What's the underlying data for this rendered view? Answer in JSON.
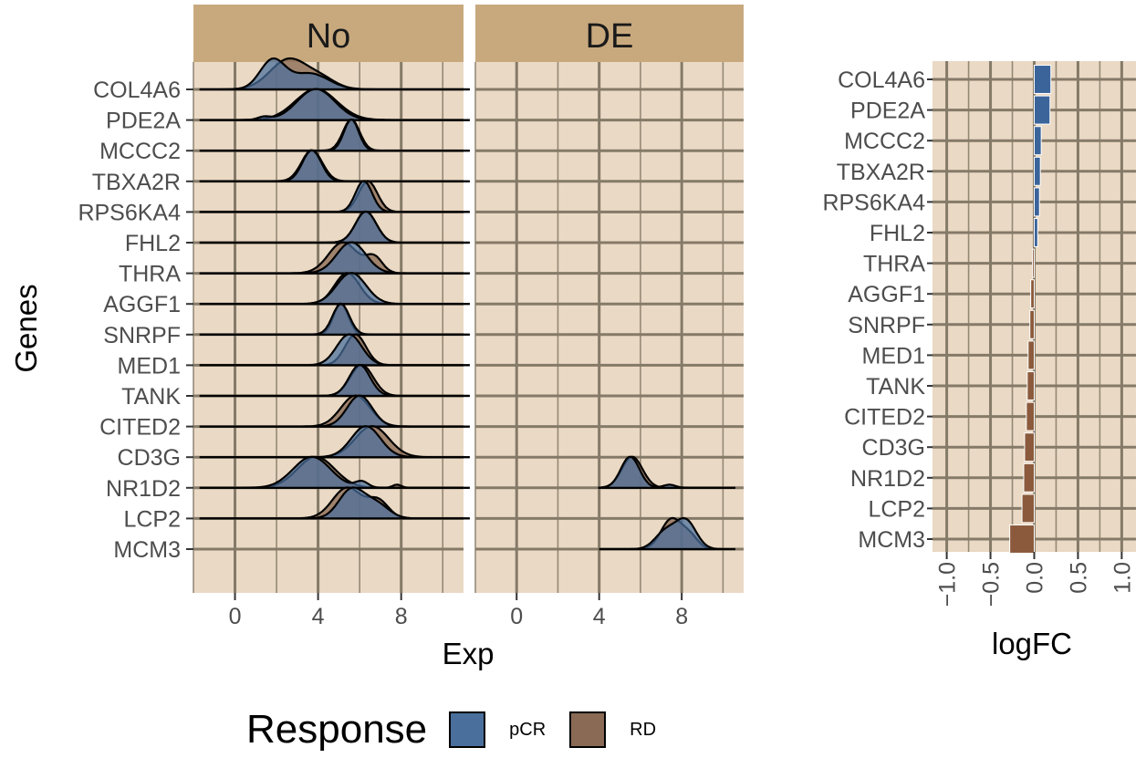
{
  "chart_data": [
    {
      "type": "ridgeline",
      "facets": [
        "No",
        "DE"
      ],
      "xlabel": "Exp",
      "ylabel": "Genes",
      "x_ticks": [
        "0",
        "4",
        "8"
      ],
      "xlim": [
        -2,
        11
      ],
      "genes": [
        "COL4A6",
        "PDE2A",
        "MCCC2",
        "TBXA2R",
        "RPS6KA4",
        "FHL2",
        "THRA",
        "AGGF1",
        "SNRPF",
        "MED1",
        "TANK",
        "CITED2",
        "CD3G",
        "NR1D2",
        "LCP2",
        "MCM3"
      ],
      "distributions": [
        {
          "gene": "COL4A6",
          "facet": "No",
          "range": [
            -1.7,
            11.3
          ],
          "pCR": [
            [
              1.8,
              0.6,
              0.9
            ],
            [
              3.6,
              0.9,
              0.5
            ]
          ],
          "RD": [
            [
              2.6,
              0.9,
              1.0
            ],
            [
              4.2,
              0.7,
              0.3
            ]
          ]
        },
        {
          "gene": "PDE2A",
          "facet": "No",
          "range": [
            -1.7,
            11.3
          ],
          "pCR": [
            [
              3.9,
              0.9,
              1.0
            ],
            [
              1.4,
              0.3,
              0.1
            ]
          ],
          "RD": [
            [
              3.9,
              1.0,
              1.0
            ]
          ]
        },
        {
          "gene": "MCCC2",
          "facet": "No",
          "range": [
            -1.7,
            11.3
          ],
          "pCR": [
            [
              5.6,
              0.35,
              1.0
            ]
          ],
          "RD": [
            [
              5.6,
              0.4,
              1.0
            ]
          ]
        },
        {
          "gene": "TBXA2R",
          "facet": "No",
          "range": [
            -1.7,
            11.3
          ],
          "pCR": [
            [
              3.7,
              0.45,
              1.0
            ]
          ],
          "RD": [
            [
              3.7,
              0.5,
              0.95
            ]
          ]
        },
        {
          "gene": "RPS6KA4",
          "facet": "No",
          "range": [
            -1.7,
            11.3
          ],
          "pCR": [
            [
              6.2,
              0.4,
              1.0
            ]
          ],
          "RD": [
            [
              6.4,
              0.45,
              0.95
            ]
          ]
        },
        {
          "gene": "FHL2",
          "facet": "No",
          "range": [
            -1.7,
            11.3
          ],
          "pCR": [
            [
              6.3,
              0.5,
              1.0
            ]
          ],
          "RD": [
            [
              6.3,
              0.5,
              1.0
            ]
          ]
        },
        {
          "gene": "THRA",
          "facet": "No",
          "range": [
            -1.7,
            11.3
          ],
          "pCR": [
            [
              5.6,
              0.7,
              1.0
            ]
          ],
          "RD": [
            [
              5.2,
              0.7,
              0.8
            ],
            [
              6.7,
              0.4,
              0.4
            ]
          ]
        },
        {
          "gene": "AGGF1",
          "facet": "No",
          "range": [
            -1.7,
            11.3
          ],
          "pCR": [
            [
              5.6,
              0.7,
              1.0
            ]
          ],
          "RD": [
            [
              5.4,
              0.6,
              1.0
            ]
          ]
        },
        {
          "gene": "SNRPF",
          "facet": "No",
          "range": [
            -1.7,
            11.3
          ],
          "pCR": [
            [
              5.1,
              0.4,
              1.0
            ]
          ],
          "RD": [
            [
              5.1,
              0.35,
              1.0
            ]
          ]
        },
        {
          "gene": "MED1",
          "facet": "No",
          "range": [
            -1.7,
            11.3
          ],
          "pCR": [
            [
              5.5,
              0.6,
              1.0
            ]
          ],
          "RD": [
            [
              5.8,
              0.5,
              1.0
            ]
          ]
        },
        {
          "gene": "TANK",
          "facet": "No",
          "range": [
            -1.7,
            11.3
          ],
          "pCR": [
            [
              6.0,
              0.5,
              1.0
            ]
          ],
          "RD": [
            [
              6.1,
              0.55,
              1.0
            ]
          ]
        },
        {
          "gene": "CITED2",
          "facet": "No",
          "range": [
            -1.7,
            11.3
          ],
          "pCR": [
            [
              6.0,
              0.6,
              1.0
            ]
          ],
          "RD": [
            [
              5.8,
              0.7,
              0.9
            ]
          ]
        },
        {
          "gene": "CD3G",
          "facet": "No",
          "range": [
            -1.7,
            11.3
          ],
          "pCR": [
            [
              6.3,
              0.7,
              0.9
            ]
          ],
          "RD": [
            [
              6.6,
              0.8,
              0.9
            ]
          ]
        },
        {
          "gene": "NR1D2",
          "facet": "No",
          "range": [
            -1.7,
            11.3
          ],
          "pCR": [
            [
              3.7,
              0.9,
              1.0
            ],
            [
              6.1,
              0.3,
              0.2
            ]
          ],
          "RD": [
            [
              3.9,
              0.9,
              0.95
            ],
            [
              7.8,
              0.2,
              0.1
            ]
          ]
        },
        {
          "gene": "NR1D2",
          "facet": "DE",
          "range": [
            4.0,
            10.6
          ],
          "pCR": [
            [
              5.5,
              0.45,
              1.0
            ],
            [
              7.4,
              0.3,
              0.1
            ]
          ],
          "RD": [
            [
              5.6,
              0.5,
              1.0
            ]
          ]
        },
        {
          "gene": "LCP2",
          "facet": "No",
          "range": [
            -1.7,
            11.3
          ],
          "pCR": [
            [
              5.6,
              0.6,
              1.0
            ],
            [
              6.8,
              0.6,
              0.5
            ]
          ],
          "RD": [
            [
              5.4,
              0.7,
              0.9
            ],
            [
              6.9,
              0.5,
              0.5
            ]
          ]
        },
        {
          "gene": "MCM3",
          "facet": "DE",
          "range": [
            4.0,
            10.6
          ],
          "pCR": [
            [
              8.2,
              0.5,
              1.0
            ],
            [
              7.2,
              0.5,
              0.6
            ]
          ],
          "RD": [
            [
              7.5,
              0.5,
              1.0
            ],
            [
              8.4,
              0.4,
              0.4
            ]
          ]
        }
      ]
    },
    {
      "type": "bar",
      "orientation": "horizontal",
      "xlabel": "logFC",
      "x_ticks": [
        "−1.0",
        "−0.5",
        "0.0",
        "0.5",
        "1.0"
      ],
      "xlim": [
        -1.0,
        1.0
      ],
      "categories": [
        "COL4A6",
        "PDE2A",
        "MCCC2",
        "TBXA2R",
        "RPS6KA4",
        "FHL2",
        "THRA",
        "AGGF1",
        "SNRPF",
        "MED1",
        "TANK",
        "CITED2",
        "CD3G",
        "NR1D2",
        "LCP2",
        "MCM3"
      ],
      "values": [
        0.19,
        0.18,
        0.08,
        0.07,
        0.06,
        0.04,
        -0.02,
        -0.04,
        -0.05,
        -0.07,
        -0.08,
        -0.09,
        -0.11,
        -0.12,
        -0.14,
        -0.28
      ]
    }
  ],
  "legend": {
    "title": "Response",
    "items": [
      {
        "label": "pCR",
        "color": "#4a6f9c"
      },
      {
        "label": "RD",
        "color": "#8a6a55"
      }
    ]
  },
  "colors": {
    "panel_bg": "#ead9c4",
    "strip_bg": "#c8a97e",
    "grid": "#857a68",
    "pcr_bar": "#3b649b",
    "rd_bar": "#8b5a3c"
  }
}
